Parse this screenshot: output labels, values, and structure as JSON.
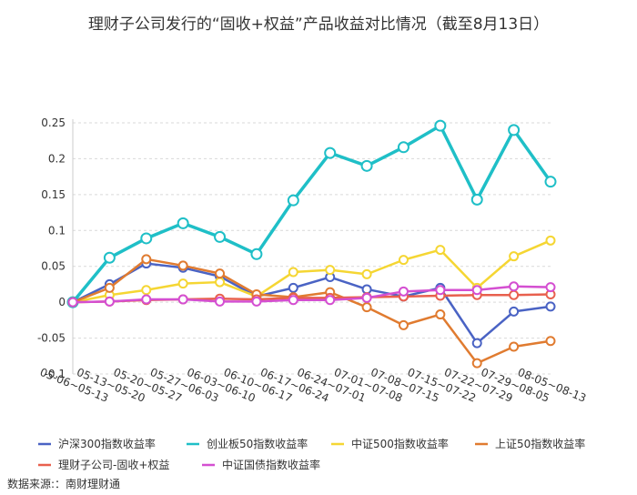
{
  "chart_data": {
    "type": "line",
    "title": "理财子公司发行的“固收+权益”产品收益对比情况（截至8月13日）",
    "source": "数据来源:：南财理财通",
    "categories": [
      "05-06~05-13",
      "05-13~05-20",
      "05-20~05-27",
      "05-27~06-03",
      "06-03~06-10",
      "06-10~06-17",
      "06-17~06-24",
      "06-24~07-01",
      "07-01~07-08",
      "07-08~07-15",
      "07-15~07-22",
      "07-22~07-29",
      "07-29~08-05",
      "08-05~08-13"
    ],
    "ylim": [
      -0.1,
      0.25
    ],
    "yticks": [
      "0.25",
      "0.2",
      "0.15",
      "0.1",
      "0.05",
      "0",
      "-0.05",
      "-0.1"
    ],
    "ytick_values": [
      0.25,
      0.2,
      0.15,
      0.1,
      0.05,
      0,
      -0.05,
      -0.1
    ],
    "grid": true,
    "legend_position": "bottom",
    "series": [
      {
        "name": "沪深300指数收益率",
        "color": "#4a63c4",
        "values": [
          0,
          0.025,
          0.054,
          0.048,
          0.036,
          0.008,
          0.02,
          0.035,
          0.018,
          0.008,
          0.02,
          -0.057,
          -0.013,
          -0.006
        ]
      },
      {
        "name": "创业板50指数收益率",
        "color": "#1fbfc7",
        "values": [
          0,
          0.062,
          0.089,
          0.11,
          0.091,
          0.067,
          0.142,
          0.208,
          0.19,
          0.216,
          0.246,
          0.143,
          0.24,
          0.168
        ]
      },
      {
        "name": "中证500指数收益率",
        "color": "#f5d633",
        "values": [
          0,
          0.01,
          0.017,
          0.026,
          0.028,
          0.008,
          0.042,
          0.045,
          0.039,
          0.059,
          0.073,
          0.02,
          0.064,
          0.086
        ]
      },
      {
        "name": "上证50指数收益率",
        "color": "#e07b30",
        "values": [
          0,
          0.02,
          0.06,
          0.051,
          0.04,
          0.011,
          0.007,
          0.014,
          -0.007,
          -0.032,
          -0.017,
          -0.085,
          -0.062,
          -0.054
        ]
      },
      {
        "name": "理财子公司-固收+权益",
        "color": "#e8604e",
        "values": [
          0,
          0.001,
          0.003,
          0.004,
          0.005,
          0.004,
          0.006,
          0.006,
          0.007,
          0.008,
          0.009,
          0.01,
          0.01,
          0.011
        ]
      },
      {
        "name": "中证国债指数收益率",
        "color": "#d44fd1",
        "values": [
          0,
          0.001,
          0.004,
          0.004,
          0.001,
          0.001,
          0.003,
          0.003,
          0.006,
          0.015,
          0.017,
          0.017,
          0.022,
          0.021
        ]
      }
    ]
  }
}
